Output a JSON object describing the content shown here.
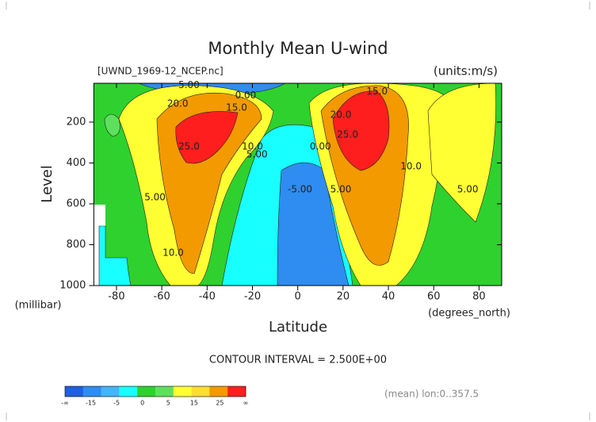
{
  "chart_data": {
    "type": "contour",
    "title": "Monthly Mean U-wind",
    "dataset_label": "[UWND_1969-12_NCEP.nc]",
    "units_label": "(units:m/s)",
    "x_label": "Latitude",
    "x_units": "(degrees_north)",
    "y_label": "Level",
    "y_units": "(millibar)",
    "xlim": [
      -90,
      90
    ],
    "xticks": [
      -80,
      -60,
      -40,
      -20,
      0,
      20,
      40,
      60,
      80
    ],
    "ylim": [
      1000,
      10
    ],
    "yticks": [
      200,
      400,
      600,
      800,
      1000
    ],
    "contour_interval": "CONTOUR INTERVAL = 2.500E+00",
    "footnote": "(mean) lon:0..357.5",
    "colorbar": {
      "colors": [
        "#1f5fe0",
        "#2f8cf0",
        "#45b4f8",
        "#18ffff",
        "#2ed12e",
        "#5ee05e",
        "#ffff33",
        "#ffdd30",
        "#f29a00",
        "#ff1e1e"
      ],
      "labels": [
        "-∞",
        -15,
        -5,
        0,
        5,
        15,
        25,
        "∞"
      ]
    },
    "contour_labels": [
      {
        "value": 5,
        "label": "5.00",
        "x": -48,
        "y": 20
      },
      {
        "value": 0,
        "label": "0.00",
        "x": -23,
        "y": 70
      },
      {
        "value": 20,
        "label": "20.0",
        "x": -53,
        "y": 110
      },
      {
        "value": 15,
        "label": "15.0",
        "x": -27,
        "y": 130
      },
      {
        "value": 25,
        "label": "25.0",
        "x": -48,
        "y": 320
      },
      {
        "value": 10,
        "label": "10.0",
        "x": -20,
        "y": 320
      },
      {
        "value": 5,
        "label": "5.00",
        "x": -18,
        "y": 360
      },
      {
        "value": 5,
        "label": "5.00",
        "x": -63,
        "y": 570
      },
      {
        "value": 10,
        "label": "10.0",
        "x": -55,
        "y": 840
      },
      {
        "value": 0,
        "label": "0.00",
        "x": 10,
        "y": 320
      },
      {
        "value": -5,
        "label": "-5.00",
        "x": 1,
        "y": 530
      },
      {
        "value": 5,
        "label": "5.00",
        "x": 19,
        "y": 530
      },
      {
        "value": 15,
        "label": "15.0",
        "x": 35,
        "y": 50
      },
      {
        "value": 20,
        "label": "20.0",
        "x": 19,
        "y": 165
      },
      {
        "value": 25,
        "label": "25.0",
        "x": 22,
        "y": 262
      },
      {
        "value": 10,
        "label": "10.0",
        "x": 50,
        "y": 417
      },
      {
        "value": 5,
        "label": "5.00",
        "x": 75,
        "y": 530
      }
    ]
  }
}
